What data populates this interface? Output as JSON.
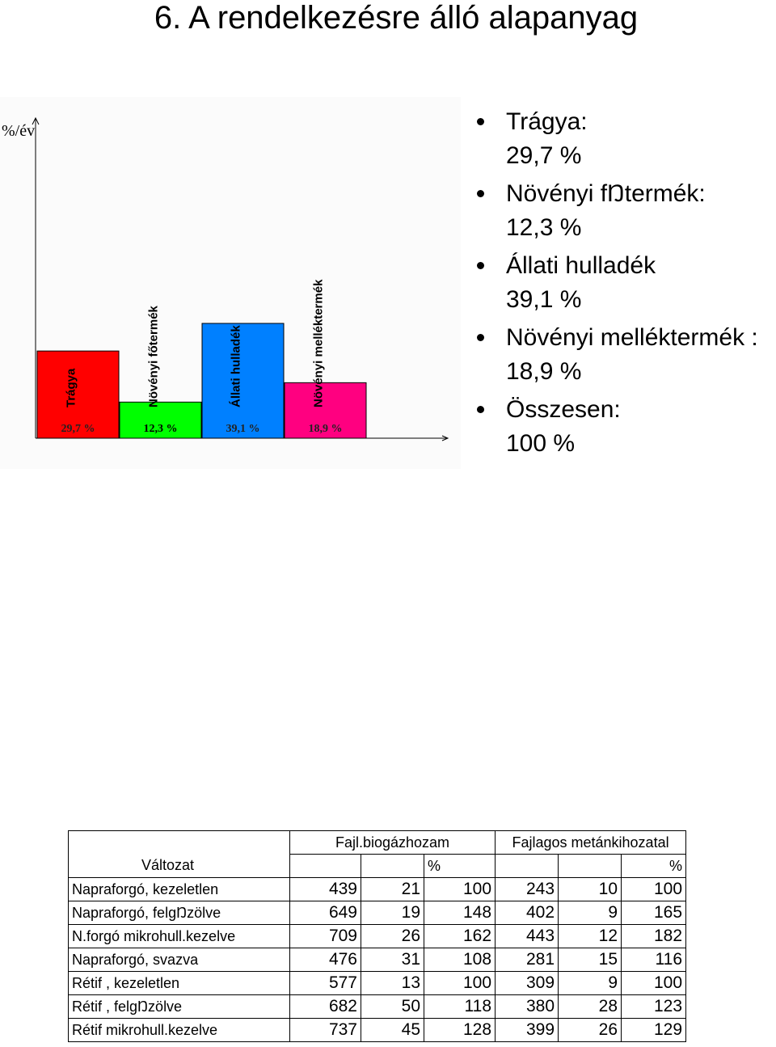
{
  "title": "6. A rendelkezésre álló alapanyag",
  "chart_data": {
    "type": "bar",
    "ylabel": "%/év",
    "categories": [
      "Trágya",
      "Növényi főtermék",
      "Állati hulladék",
      "Növényi melléktermék"
    ],
    "values": [
      29.7,
      12.3,
      39.1,
      18.9
    ],
    "value_labels": [
      "29,7 %",
      "12,3 %",
      "39,1 %",
      "18,9 %"
    ],
    "colors": [
      "#ff0000",
      "#00ff00",
      "#0080ff",
      "#ff0080"
    ],
    "ylim": [
      0,
      100
    ],
    "grid": false,
    "legend": "none"
  },
  "bullets": [
    {
      "label": "Trágya:",
      "value": "29,7 %"
    },
    {
      "label": "Növényi fŊtermék:",
      "value": "12,3 %"
    },
    {
      "label": "Állati hulladék",
      "value": "39,1 %"
    },
    {
      "label": "Növényi melléktermék :",
      "value": "18,9 %"
    },
    {
      "label": "Összesen:",
      "value": "100 %"
    }
  ],
  "table": {
    "header1": {
      "group1": "Fajl.biogázhozam",
      "group2": "Fajlagos metánkihozatal"
    },
    "header2": {
      "variant": "Változat",
      "pct1": "%",
      "pct2": "%"
    },
    "rows": [
      {
        "name": "Napraforgó, kezeletlen",
        "c1": "439",
        "c2": "21",
        "c3": "100",
        "c4": "243",
        "c5": "10",
        "c6": "100"
      },
      {
        "name": "Napraforgó, felgŊzölve",
        "c1": "649",
        "c2": "19",
        "c3": "148",
        "c4": "402",
        "c5": "9",
        "c6": "165"
      },
      {
        "name": "N.forgó mikrohull.kezelve",
        "c1": "709",
        "c2": "26",
        "c3": "162",
        "c4": "443",
        "c5": "12",
        "c6": "182"
      },
      {
        "name": "Napraforgó, svazva",
        "c1": "476",
        "c2": "31",
        "c3": "108",
        "c4": "281",
        "c5": "15",
        "c6": "116"
      },
      {
        "name": "Rétif   , kezeletlen",
        "c1": "577",
        "c2": "13",
        "c3": "100",
        "c4": "309",
        "c5": "9",
        "c6": "100"
      },
      {
        "name": "Rétif   , felgŊzölve",
        "c1": "682",
        "c2": "50",
        "c3": "118",
        "c4": "380",
        "c5": "28",
        "c6": "123"
      },
      {
        "name": "Rétif    mikrohull.kezelve",
        "c1": "737",
        "c2": "45",
        "c3": "128",
        "c4": "399",
        "c5": "26",
        "c6": "129"
      }
    ]
  }
}
